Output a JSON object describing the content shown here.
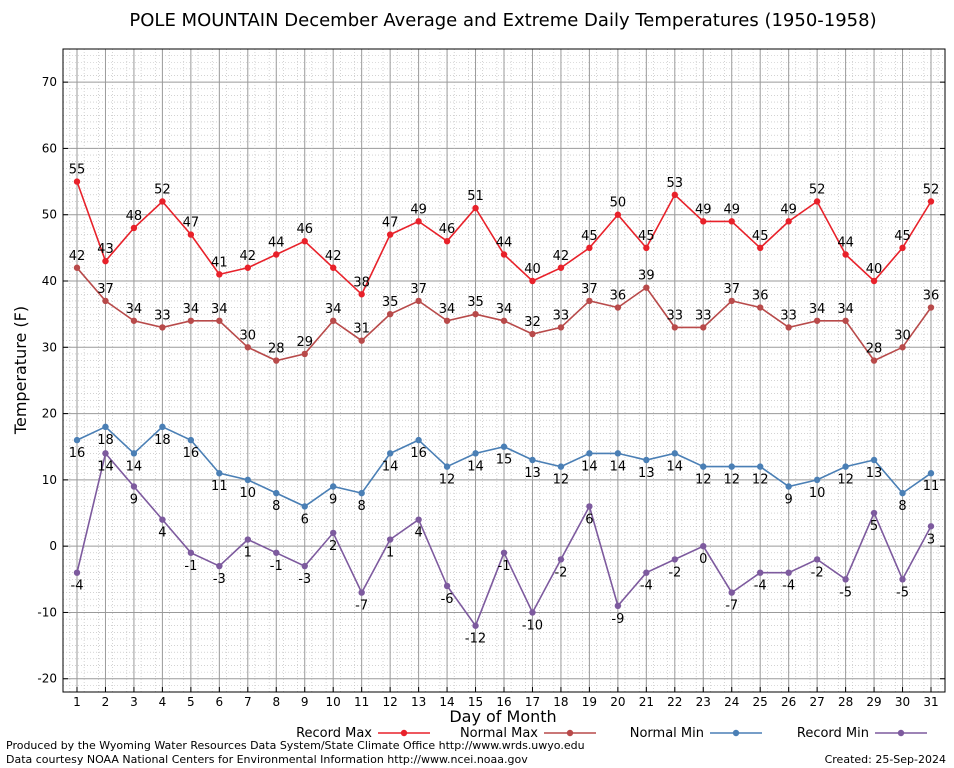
{
  "chart_data": {
    "type": "line",
    "title": "POLE MOUNTAIN December Average and Extreme Daily Temperatures (1950-1958)",
    "xlabel": "Day of Month",
    "ylabel": "Temperature (F)",
    "ylim": [
      -22,
      75
    ],
    "yticks": [
      -20,
      -10,
      0,
      10,
      20,
      30,
      40,
      50,
      60,
      70
    ],
    "x": [
      1,
      2,
      3,
      4,
      5,
      6,
      7,
      8,
      9,
      10,
      11,
      12,
      13,
      14,
      15,
      16,
      17,
      18,
      19,
      20,
      21,
      22,
      23,
      24,
      25,
      26,
      27,
      28,
      29,
      30,
      31
    ],
    "grid": true,
    "legend_position": "bottom",
    "series": [
      {
        "name": "Record Max",
        "color": "#e8212a",
        "label_pos": "above",
        "values": [
          55,
          43,
          48,
          52,
          47,
          41,
          42,
          44,
          46,
          42,
          38,
          47,
          49,
          46,
          51,
          44,
          40,
          42,
          45,
          50,
          45,
          53,
          49,
          49,
          45,
          49,
          52,
          44,
          40,
          45,
          52
        ]
      },
      {
        "name": "Normal Max",
        "color": "#b84a4a",
        "label_pos": "above",
        "values": [
          42,
          37,
          34,
          33,
          34,
          34,
          30,
          28,
          29,
          34,
          31,
          35,
          37,
          34,
          35,
          34,
          32,
          33,
          37,
          36,
          39,
          33,
          33,
          37,
          36,
          33,
          34,
          34,
          28,
          30,
          36
        ]
      },
      {
        "name": "Normal Min",
        "color": "#4a7fb5",
        "label_pos": "below",
        "values": [
          16,
          18,
          14,
          18,
          16,
          11,
          10,
          8,
          6,
          9,
          8,
          14,
          16,
          12,
          14,
          15,
          13,
          12,
          14,
          14,
          13,
          14,
          12,
          12,
          12,
          9,
          10,
          12,
          13,
          8,
          11
        ]
      },
      {
        "name": "Record Min",
        "color": "#7d5a9e",
        "label_pos": "below",
        "values": [
          -4,
          14,
          9,
          4,
          -1,
          -3,
          1,
          -1,
          -3,
          2,
          -7,
          1,
          4,
          -6,
          -12,
          -1,
          -10,
          -2,
          6,
          -9,
          -4,
          -2,
          0,
          -7,
          -4,
          -4,
          -2,
          -5,
          5,
          -5,
          3
        ]
      }
    ]
  },
  "footer": {
    "produced_by": "Produced by the Wyoming Water Resources Data System/State Climate Office http://www.wrds.uwyo.edu",
    "courtesy": "Data courtesy NOAA National Centers for Environmental Information http://www.ncei.noaa.gov",
    "created": "Created:  25-Sep-2024"
  }
}
